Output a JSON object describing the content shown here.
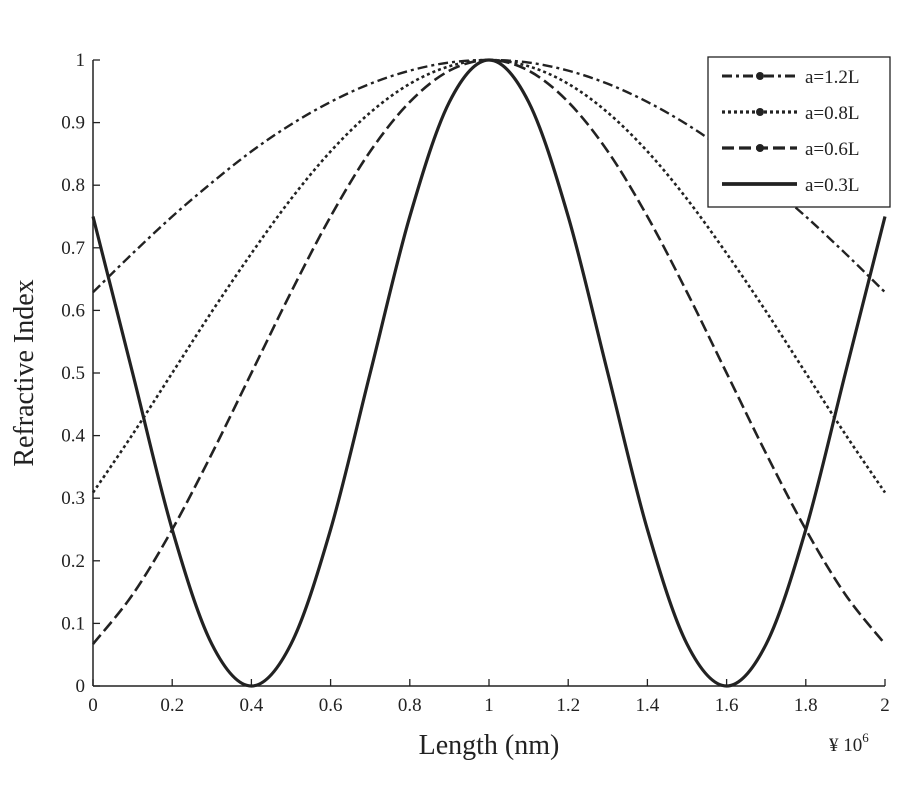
{
  "chart_data": {
    "type": "line",
    "title": "",
    "xlabel": "Length (nm)",
    "ylabel": "Refractive Index",
    "x_multiplier_label": "¥ 10",
    "x_multiplier_exponent": "6",
    "xlim": [
      0,
      2
    ],
    "ylim": [
      0,
      1
    ],
    "xticks": [
      "0",
      "0.2",
      "0.4",
      "0.6",
      "0.8",
      "1",
      "1.2",
      "1.4",
      "1.6",
      "1.8",
      "2"
    ],
    "yticks": [
      "0",
      "0.1",
      "0.2",
      "0.3",
      "0.4",
      "0.5",
      "0.6",
      "0.7",
      "0.8",
      "0.9",
      "1"
    ],
    "grid": false,
    "legend_position": "top-right",
    "x": [
      0,
      0.1,
      0.2,
      0.3,
      0.4,
      0.5,
      0.6,
      0.7,
      0.8,
      0.9,
      1.0,
      1.1,
      1.2,
      1.3,
      1.4,
      1.5,
      1.6,
      1.7,
      1.8,
      1.9,
      2.0
    ],
    "series": [
      {
        "name": "a=1.2L",
        "style": "dashdot",
        "color": "#222222",
        "values": [
          0.629,
          0.691,
          0.75,
          0.804,
          0.854,
          0.897,
          0.933,
          0.962,
          0.983,
          0.996,
          1.0,
          0.996,
          0.983,
          0.962,
          0.933,
          0.897,
          0.854,
          0.804,
          0.75,
          0.691,
          0.629
        ]
      },
      {
        "name": "a=0.8L",
        "style": "dotted",
        "color": "#222222",
        "values": [
          0.309,
          0.402,
          0.5,
          0.598,
          0.691,
          0.778,
          0.854,
          0.916,
          0.962,
          0.99,
          1.0,
          0.99,
          0.962,
          0.916,
          0.854,
          0.778,
          0.691,
          0.598,
          0.5,
          0.402,
          0.309
        ]
      },
      {
        "name": "a=0.6L",
        "style": "dashed",
        "color": "#222222",
        "values": [
          0.067,
          0.146,
          0.25,
          0.371,
          0.5,
          0.629,
          0.75,
          0.854,
          0.933,
          0.983,
          1.0,
          0.983,
          0.933,
          0.854,
          0.75,
          0.629,
          0.5,
          0.371,
          0.25,
          0.146,
          0.067
        ]
      },
      {
        "name": "a=0.3L",
        "style": "solid",
        "color": "#222222",
        "values": [
          0.75,
          0.5,
          0.25,
          0.067,
          0.0,
          0.067,
          0.25,
          0.5,
          0.75,
          0.933,
          1.0,
          0.933,
          0.75,
          0.5,
          0.25,
          0.067,
          0.0,
          0.067,
          0.25,
          0.5,
          0.75
        ]
      }
    ]
  }
}
